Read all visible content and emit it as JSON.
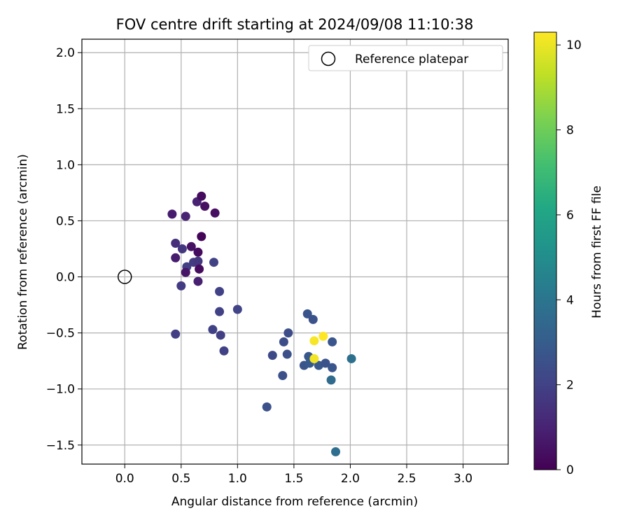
{
  "chart_data": {
    "type": "scatter",
    "title": "FOV centre drift starting at 2024/09/08 11:10:38",
    "xlabel": "Angular distance from reference (arcmin)",
    "ylabel": "Rotation from reference (arcmin)",
    "xlim": [
      -0.38,
      3.4
    ],
    "ylim": [
      -1.67,
      2.12
    ],
    "xticks": [
      0.0,
      0.5,
      1.0,
      1.5,
      2.0,
      2.5,
      3.0
    ],
    "xtick_labels": [
      "0.0",
      "0.5",
      "1.0",
      "1.5",
      "2.0",
      "2.5",
      "3.0"
    ],
    "yticks": [
      -1.5,
      -1.0,
      -0.5,
      0.0,
      0.5,
      1.0,
      1.5,
      2.0
    ],
    "ytick_labels": [
      "−1.5",
      "−1.0",
      "−0.5",
      "0.0",
      "0.5",
      "1.0",
      "1.5",
      "2.0"
    ],
    "grid": true,
    "legend": {
      "position": "top-right",
      "entries": [
        "Reference platepar"
      ]
    },
    "reference_point": {
      "x": 0.0,
      "y": 0.0,
      "label": "Reference platepar"
    },
    "colorbar": {
      "label": "Hours from first FF file",
      "range": [
        0,
        10.3
      ],
      "colormap": "viridis",
      "ticks": [
        0,
        2,
        4,
        6,
        8,
        10
      ],
      "tick_labels": [
        "0",
        "2",
        "4",
        "6",
        "8",
        "10"
      ]
    },
    "points": [
      {
        "x": 0.42,
        "y": 0.56,
        "h": 0.8
      },
      {
        "x": 0.54,
        "y": 0.54,
        "h": 1.0
      },
      {
        "x": 0.64,
        "y": 0.67,
        "h": 1.0
      },
      {
        "x": 0.68,
        "y": 0.72,
        "h": 0.3
      },
      {
        "x": 0.71,
        "y": 0.63,
        "h": 0.4
      },
      {
        "x": 0.8,
        "y": 0.57,
        "h": 0.4
      },
      {
        "x": 0.68,
        "y": 0.36,
        "h": 0.1
      },
      {
        "x": 0.45,
        "y": 0.3,
        "h": 1.4
      },
      {
        "x": 0.51,
        "y": 0.25,
        "h": 1.6
      },
      {
        "x": 0.59,
        "y": 0.27,
        "h": 0.5
      },
      {
        "x": 0.65,
        "y": 0.22,
        "h": 0.3
      },
      {
        "x": 0.45,
        "y": 0.17,
        "h": 0.8
      },
      {
        "x": 0.55,
        "y": 0.09,
        "h": 1.9
      },
      {
        "x": 0.61,
        "y": 0.13,
        "h": 1.8
      },
      {
        "x": 0.65,
        "y": 0.14,
        "h": 1.6
      },
      {
        "x": 0.54,
        "y": 0.04,
        "h": 0.6
      },
      {
        "x": 0.66,
        "y": 0.07,
        "h": 0.3
      },
      {
        "x": 0.79,
        "y": 0.13,
        "h": 2.0
      },
      {
        "x": 0.65,
        "y": -0.04,
        "h": 0.9
      },
      {
        "x": 0.5,
        "y": -0.08,
        "h": 1.8
      },
      {
        "x": 0.84,
        "y": -0.13,
        "h": 2.0
      },
      {
        "x": 0.84,
        "y": -0.31,
        "h": 2.0
      },
      {
        "x": 1.0,
        "y": -0.29,
        "h": 2.1
      },
      {
        "x": 0.78,
        "y": -0.47,
        "h": 2.0
      },
      {
        "x": 0.85,
        "y": -0.52,
        "h": 1.9
      },
      {
        "x": 0.45,
        "y": -0.51,
        "h": 1.9
      },
      {
        "x": 0.88,
        "y": -0.66,
        "h": 2.0
      },
      {
        "x": 1.31,
        "y": -0.7,
        "h": 2.3
      },
      {
        "x": 1.41,
        "y": -0.58,
        "h": 2.4
      },
      {
        "x": 1.45,
        "y": -0.5,
        "h": 2.4
      },
      {
        "x": 1.44,
        "y": -0.69,
        "h": 2.5
      },
      {
        "x": 1.4,
        "y": -0.88,
        "h": 2.5
      },
      {
        "x": 1.26,
        "y": -1.16,
        "h": 2.5
      },
      {
        "x": 1.62,
        "y": -0.33,
        "h": 2.7
      },
      {
        "x": 1.67,
        "y": -0.38,
        "h": 2.6
      },
      {
        "x": 1.59,
        "y": -0.79,
        "h": 2.7
      },
      {
        "x": 1.63,
        "y": -0.71,
        "h": 2.8
      },
      {
        "x": 1.64,
        "y": -0.77,
        "h": 2.9
      },
      {
        "x": 1.72,
        "y": -0.79,
        "h": 2.8
      },
      {
        "x": 1.78,
        "y": -0.77,
        "h": 2.6
      },
      {
        "x": 1.84,
        "y": -0.58,
        "h": 2.7
      },
      {
        "x": 1.84,
        "y": -0.81,
        "h": 2.7
      },
      {
        "x": 1.83,
        "y": -0.92,
        "h": 3.6
      },
      {
        "x": 2.01,
        "y": -0.73,
        "h": 3.8
      },
      {
        "x": 1.87,
        "y": -1.56,
        "h": 3.7
      },
      {
        "x": 1.68,
        "y": -0.57,
        "h": 10.2
      },
      {
        "x": 1.76,
        "y": -0.53,
        "h": 10.3
      },
      {
        "x": 1.68,
        "y": -0.73,
        "h": 10.1
      }
    ]
  }
}
